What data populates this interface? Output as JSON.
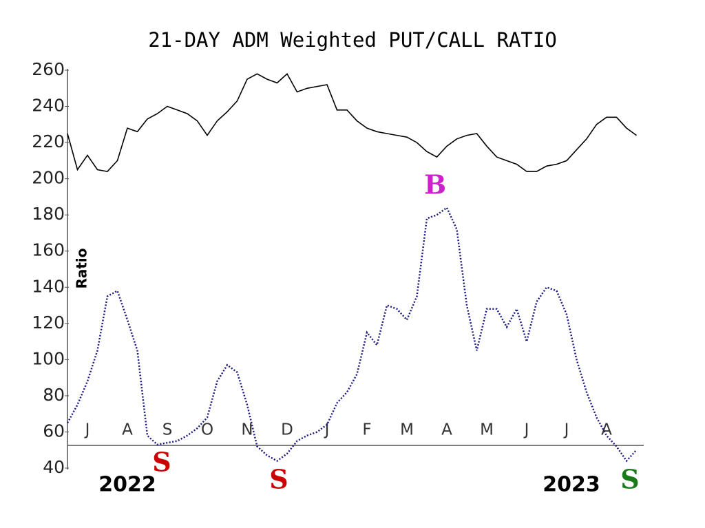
{
  "chart_data": {
    "type": "line",
    "title": "21-DAY ADM Weighted PUT/CALL RATIO",
    "y_label": "Ratio",
    "categories": [
      null,
      null,
      "J",
      null,
      null,
      null,
      "A",
      null,
      null,
      null,
      "S",
      null,
      null,
      null,
      "O",
      null,
      null,
      null,
      "N",
      null,
      null,
      null,
      "D",
      null,
      null,
      null,
      "J",
      null,
      null,
      null,
      "F",
      null,
      null,
      null,
      "M",
      null,
      null,
      null,
      "A",
      null,
      null,
      null,
      "M",
      null,
      null,
      null,
      "J",
      null,
      null,
      null,
      "J",
      null,
      null,
      null,
      "A",
      null,
      null,
      null
    ],
    "year_labels": [
      "2022",
      "2023"
    ],
    "series": [
      {
        "color": "#000000",
        "style": "solid",
        "values": [
          225,
          205,
          213,
          205,
          204,
          210,
          228,
          226,
          233,
          236,
          240,
          238,
          236,
          232,
          224,
          232,
          237,
          243,
          255,
          258,
          255,
          253,
          258,
          248,
          250,
          251,
          252,
          238,
          238,
          232,
          228,
          226,
          225,
          224,
          223,
          220,
          215,
          212,
          218,
          222,
          224,
          225,
          218,
          212,
          210,
          208,
          204,
          204,
          207,
          208,
          210,
          216,
          222,
          230,
          234,
          234,
          228,
          224
        ]
      },
      {
        "color": "#1a1a80",
        "style": "dotted",
        "values": [
          65,
          75,
          88,
          105,
          135,
          138,
          122,
          105,
          58,
          53,
          54,
          55,
          58,
          62,
          68,
          88,
          97,
          93,
          75,
          52,
          47,
          44,
          48,
          55,
          58,
          60,
          64,
          76,
          82,
          92,
          115,
          108,
          130,
          128,
          122,
          135,
          178,
          180,
          184,
          172,
          130,
          105,
          128,
          128,
          118,
          128,
          110,
          132,
          140,
          138,
          125,
          100,
          82,
          68,
          58,
          52,
          44,
          50
        ]
      }
    ],
    "annotations": [
      {
        "text": "S",
        "color": "#cc0000"
      },
      {
        "text": "S",
        "color": "#cc0000"
      },
      {
        "text": "B",
        "color": "#cc22cc"
      },
      {
        "text": "S",
        "color": "#1a7a1a"
      }
    ],
    "ylim": [
      40,
      260
    ],
    "yticks": [
      40,
      60,
      80,
      100,
      120,
      140,
      160,
      180,
      200,
      220,
      240,
      260
    ]
  }
}
